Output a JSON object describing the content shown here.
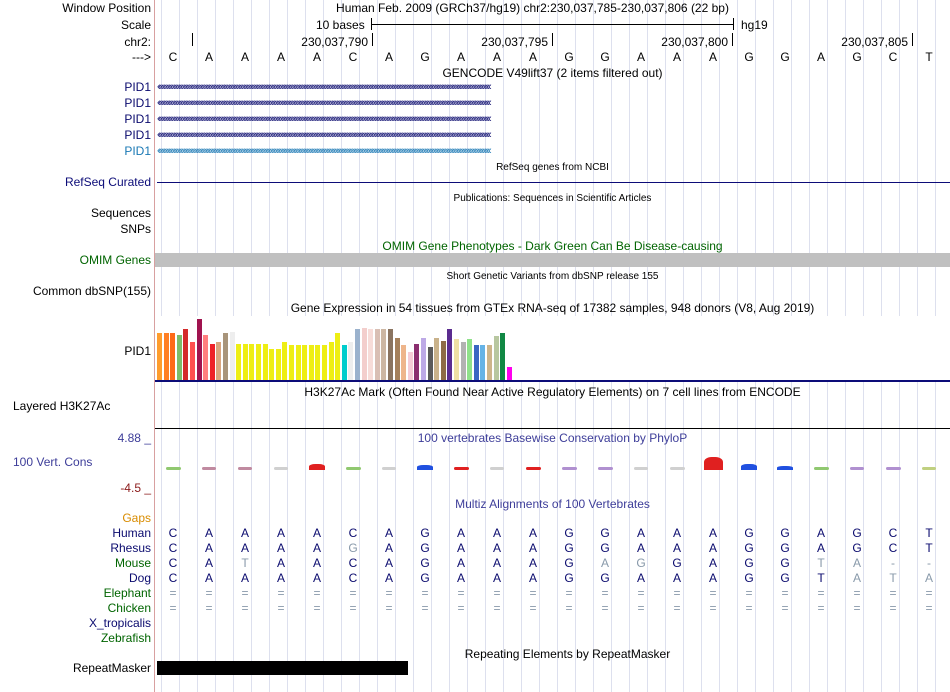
{
  "header": {
    "window_position_label": "Window Position",
    "scale_label": "Scale",
    "chrom_label": "chr2:",
    "arrow_label": "--->",
    "assembly_text": "Human Feb. 2009 (GRCh37/hg19)   chr2:230,037,785-230,037,806 (22 bp)",
    "scale_text": "10 bases",
    "assembly_short": "hg19",
    "ruler_ticks": [
      "230,037,790",
      "230,037,795",
      "230,037,800",
      "230,037,805"
    ],
    "sequence": [
      "C",
      "A",
      "A",
      "A",
      "A",
      "C",
      "A",
      "G",
      "A",
      "A",
      "A",
      "G",
      "G",
      "A",
      "A",
      "A",
      "G",
      "G",
      "A",
      "G",
      "C",
      "T"
    ]
  },
  "gencode": {
    "title": "GENCODE V49lift37 (2 items filtered out)",
    "items": [
      {
        "label": "PID1",
        "color": "#0a0a6e"
      },
      {
        "label": "PID1",
        "color": "#0a0a6e"
      },
      {
        "label": "PID1",
        "color": "#0a0a6e"
      },
      {
        "label": "PID1",
        "color": "#0a0a6e"
      },
      {
        "label": "PID1",
        "color": "#1a78b4"
      }
    ]
  },
  "refseq": {
    "title": "RefSeq genes from NCBI",
    "label": "RefSeq Curated",
    "color": "#0c0c78"
  },
  "publications": {
    "title": "Publications: Sequences in Scientific Articles",
    "label1": "Sequences",
    "label2": "SNPs"
  },
  "omim": {
    "title": "OMIM Gene Phenotypes - Dark Green Can Be Disease-causing",
    "label": "OMIM Genes",
    "color": "#006400"
  },
  "dbsnp": {
    "title": "Short Genetic Variants from dbSNP release 155",
    "label": "Common dbSNP(155)"
  },
  "gtex": {
    "title": "Gene Expression in 54 tissues from GTEx RNA-seq of 17382 samples, 948 donors (V8, Aug 2019)",
    "label": "PID1",
    "values": [
      0.74,
      0.74,
      0.74,
      0.71,
      0.79,
      0.59,
      0.96,
      0.71,
      0.56,
      0.59,
      0.74,
      0.75,
      0.56,
      0.56,
      0.56,
      0.56,
      0.56,
      0.49,
      0.49,
      0.59,
      0.54,
      0.54,
      0.54,
      0.54,
      0.54,
      0.54,
      0.59,
      0.74,
      0.54,
      0.59,
      0.79,
      0.81,
      0.79,
      0.79,
      0.79,
      0.79,
      0.65,
      0.55,
      0.44,
      0.56,
      0.66,
      0.52,
      0.65,
      0.61,
      0.79,
      0.64,
      0.59,
      0.64,
      0.54,
      0.54,
      0.54,
      0.69,
      0.74,
      0.21
    ],
    "colors": [
      "#ff9c2d",
      "#ff7f24",
      "#ff6a17",
      "#7ebc6a",
      "#d42a2a",
      "#ff4f4f",
      "#a0134f",
      "#ff7e7e",
      "#ee2228",
      "#d9a67e",
      "#a8947a",
      "#eeeeee",
      "#eeee14",
      "#eeee14",
      "#eeee14",
      "#eeee14",
      "#eeee14",
      "#eeee14",
      "#eeee14",
      "#eeee14",
      "#eeee14",
      "#eeee14",
      "#eeee14",
      "#eeee14",
      "#eeee14",
      "#eeee14",
      "#eeee14",
      "#eeee14",
      "#00cdcd",
      "#eeeeee",
      "#9bb2cd",
      "#f3cecc",
      "#f7dcd8",
      "#d9bfb4",
      "#cdb7a3",
      "#8b7460",
      "#a5805b",
      "#eeb58b",
      "#f5ccd6",
      "#8b2f6f",
      "#bda9e6",
      "#5a5a5a",
      "#c9b28b",
      "#8e6b45",
      "#5b2c8f",
      "#eee0a4",
      "#b2b2b2",
      "#8fe18a",
      "#3a66c2",
      "#66b3e6",
      "#cdb58b",
      "#b8c7a0",
      "#118844",
      "#ff00ee"
    ]
  },
  "h3k27ac": {
    "title": "H3K27Ac Mark (Often Found Near Active Regulatory Elements) on 7 cell lines from ENCODE",
    "label": "Layered H3K27Ac"
  },
  "phylop": {
    "title": "100 vertebrates Basewise Conservation by PhyloP",
    "label": "100 Vert. Cons",
    "ymax": "4.88 _",
    "ymin": "-4.5 _",
    "scores": [
      0.3,
      0.1,
      0.15,
      0.05,
      1.2,
      0.3,
      0.2,
      0.9,
      0.3,
      0.2,
      0.4,
      0.4,
      0.3,
      0.1,
      0.3,
      2.6,
      1.2,
      0.8,
      0.3,
      0.2,
      0.3,
      0.2
    ],
    "colors": [
      "#90c870",
      "#c08aa0",
      "#c08aa0",
      "#d0d0d0",
      "#e02020",
      "#90c870",
      "#d0d0d0",
      "#2050e0",
      "#e02020",
      "#d0d0d0",
      "#e02020",
      "#b090d0",
      "#b090d0",
      "#d0d0d0",
      "#d0d0d0",
      "#e02020",
      "#2050e0",
      "#2050e0",
      "#90c870",
      "#b090d0",
      "#b090d0",
      "#c0d080"
    ]
  },
  "multiz": {
    "title": "Multiz Alignments of 100 Vertebrates",
    "gaps_label": "Gaps",
    "species": [
      {
        "name": "Human",
        "color": "#0a0a6e",
        "seq": [
          "C",
          "A",
          "A",
          "A",
          "A",
          "C",
          "A",
          "G",
          "A",
          "A",
          "A",
          "G",
          "G",
          "A",
          "A",
          "A",
          "G",
          "G",
          "A",
          "G",
          "C",
          "T"
        ]
      },
      {
        "name": "Rhesus",
        "color": "#0a0a6e",
        "seq": [
          "C",
          "A",
          "A",
          "A",
          "A",
          "G",
          "A",
          "G",
          "A",
          "A",
          "A",
          "G",
          "G",
          "A",
          "A",
          "A",
          "G",
          "G",
          "A",
          "G",
          "C",
          "T"
        ]
      },
      {
        "name": "Mouse",
        "color": "#006400",
        "seq": [
          "C",
          "A",
          "T",
          "A",
          "A",
          "C",
          "A",
          "G",
          "A",
          "A",
          "A",
          "G",
          "A",
          "G",
          "G",
          "A",
          "G",
          "G",
          "T",
          "A",
          "-",
          "-"
        ]
      },
      {
        "name": "Dog",
        "color": "#0a0a6e",
        "seq": [
          "C",
          "A",
          "A",
          "A",
          "A",
          "C",
          "A",
          "G",
          "A",
          "A",
          "A",
          "G",
          "G",
          "A",
          "A",
          "A",
          "G",
          "G",
          "T",
          "A",
          "T",
          "A"
        ]
      },
      {
        "name": "Elephant",
        "color": "#006400",
        "seq": [
          "=",
          "=",
          "=",
          "=",
          "=",
          "=",
          "=",
          "=",
          "=",
          "=",
          "=",
          "=",
          "=",
          "=",
          "=",
          "=",
          "=",
          "=",
          "=",
          "=",
          "=",
          "="
        ]
      },
      {
        "name": "Chicken",
        "color": "#006400",
        "seq": [
          "=",
          "=",
          "=",
          "=",
          "=",
          "=",
          "=",
          "=",
          "=",
          "=",
          "=",
          "=",
          "=",
          "=",
          "=",
          "=",
          "=",
          "=",
          "=",
          "=",
          "=",
          "="
        ]
      },
      {
        "name": "X_tropicalis",
        "color": "#0a0a6e",
        "seq": []
      },
      {
        "name": "Zebrafish",
        "color": "#006400",
        "seq": []
      }
    ],
    "dim_cells": [
      [
        1,
        5
      ],
      [
        2,
        2
      ],
      [
        2,
        12
      ],
      [
        2,
        13
      ],
      [
        2,
        18
      ],
      [
        2,
        19
      ],
      [
        2,
        20
      ],
      [
        2,
        21
      ],
      [
        3,
        19
      ],
      [
        3,
        20
      ],
      [
        3,
        21
      ]
    ]
  },
  "repeatmasker": {
    "title": "Repeating Elements by RepeatMasker",
    "label": "RepeatMasker"
  },
  "colors": {
    "label_orange": "#d98c00",
    "phylo_label": "#3d3d99",
    "phylo_max": "#3d3d99",
    "phylo_min": "#8b1a1a"
  }
}
